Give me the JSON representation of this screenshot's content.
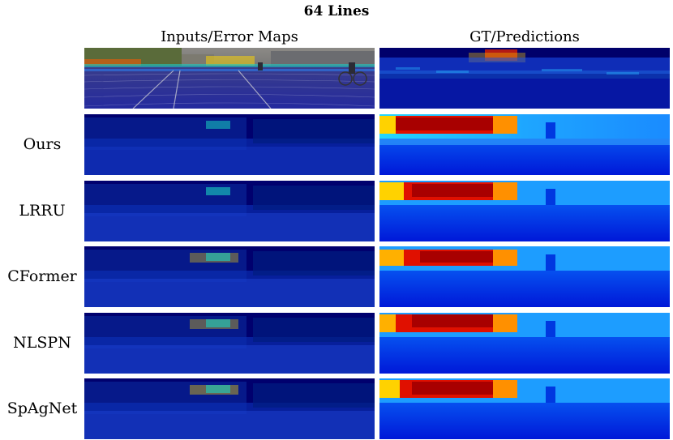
{
  "figure": {
    "title": "64 Lines",
    "columns": [
      "Inputs/Error Maps",
      "GT/Predictions"
    ],
    "rows": [
      {
        "label": "",
        "left": "input",
        "right": "gt"
      },
      {
        "label": "Ours",
        "left": "error",
        "right": "pred"
      },
      {
        "label": "LRRU",
        "left": "error",
        "right": "pred"
      },
      {
        "label": "CFormer",
        "left": "error",
        "right": "pred"
      },
      {
        "label": "NLSPN",
        "left": "error",
        "right": "pred"
      },
      {
        "label": "SpAgNet",
        "left": "error",
        "right": "pred"
      }
    ]
  },
  "colors": {
    "deep_blue": "#00007f",
    "blue": "#0033ff",
    "cyan": "#19c6ff",
    "yellow": "#ffe600",
    "red": "#e00000",
    "dark_red": "#8a0000"
  }
}
